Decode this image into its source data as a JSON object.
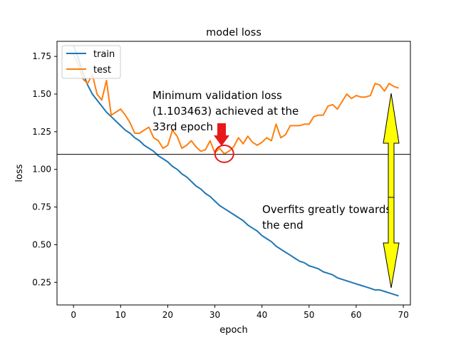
{
  "chart_data": {
    "type": "line",
    "title": "model loss",
    "xlabel": "epoch",
    "ylabel": "loss",
    "xlim": [
      -3.5,
      71.5
    ],
    "ylim": [
      0.1,
      1.85
    ],
    "xticks": [
      0,
      10,
      20,
      30,
      40,
      50,
      60,
      70
    ],
    "yticks": [
      0.25,
      0.5,
      0.75,
      1.0,
      1.25,
      1.5,
      1.75
    ],
    "legend_position": "top-left",
    "grid": false,
    "series": [
      {
        "name": "train",
        "color": "#1f77b4",
        "x": [
          0,
          1,
          2,
          3,
          4,
          5,
          6,
          7,
          8,
          9,
          10,
          11,
          12,
          13,
          14,
          15,
          16,
          17,
          18,
          19,
          20,
          21,
          22,
          23,
          24,
          25,
          26,
          27,
          28,
          29,
          30,
          31,
          32,
          33,
          34,
          35,
          36,
          37,
          38,
          39,
          40,
          41,
          42,
          43,
          44,
          45,
          46,
          47,
          48,
          49,
          50,
          51,
          52,
          53,
          54,
          55,
          56,
          57,
          58,
          59,
          60,
          61,
          62,
          63,
          64,
          65,
          66,
          67,
          68,
          69
        ],
        "y": [
          1.82,
          1.74,
          1.64,
          1.56,
          1.5,
          1.46,
          1.42,
          1.38,
          1.35,
          1.32,
          1.29,
          1.26,
          1.24,
          1.21,
          1.19,
          1.16,
          1.14,
          1.12,
          1.09,
          1.07,
          1.05,
          1.02,
          1.0,
          0.97,
          0.95,
          0.92,
          0.89,
          0.87,
          0.84,
          0.82,
          0.79,
          0.76,
          0.74,
          0.72,
          0.7,
          0.68,
          0.66,
          0.63,
          0.61,
          0.59,
          0.56,
          0.54,
          0.52,
          0.49,
          0.47,
          0.45,
          0.43,
          0.41,
          0.39,
          0.38,
          0.36,
          0.35,
          0.34,
          0.32,
          0.31,
          0.3,
          0.28,
          0.27,
          0.26,
          0.25,
          0.24,
          0.23,
          0.22,
          0.21,
          0.2,
          0.2,
          0.19,
          0.18,
          0.17,
          0.16
        ]
      },
      {
        "name": "test",
        "color": "#ff7f0e",
        "x": [
          0,
          1,
          2,
          3,
          4,
          5,
          6,
          7,
          8,
          9,
          10,
          11,
          12,
          13,
          14,
          15,
          16,
          17,
          18,
          19,
          20,
          21,
          22,
          23,
          24,
          25,
          26,
          27,
          28,
          29,
          30,
          31,
          32,
          33,
          34,
          35,
          36,
          37,
          38,
          39,
          40,
          41,
          42,
          43,
          44,
          45,
          46,
          47,
          48,
          49,
          50,
          51,
          52,
          53,
          54,
          55,
          56,
          57,
          58,
          59,
          60,
          61,
          62,
          63,
          64,
          65,
          66,
          67,
          68,
          69
        ],
        "y": [
          1.76,
          1.7,
          1.6,
          1.57,
          1.63,
          1.5,
          1.46,
          1.59,
          1.36,
          1.38,
          1.4,
          1.36,
          1.31,
          1.24,
          1.24,
          1.26,
          1.28,
          1.21,
          1.19,
          1.14,
          1.16,
          1.26,
          1.22,
          1.14,
          1.16,
          1.19,
          1.15,
          1.12,
          1.13,
          1.19,
          1.11,
          1.14,
          1.103463,
          1.12,
          1.15,
          1.21,
          1.17,
          1.22,
          1.18,
          1.16,
          1.18,
          1.21,
          1.19,
          1.3,
          1.21,
          1.23,
          1.29,
          1.29,
          1.29,
          1.3,
          1.3,
          1.35,
          1.36,
          1.36,
          1.42,
          1.43,
          1.4,
          1.45,
          1.5,
          1.47,
          1.49,
          1.48,
          1.48,
          1.49,
          1.57,
          1.56,
          1.52,
          1.57,
          1.55,
          1.54
        ]
      }
    ],
    "reference_line": {
      "y": 1.1
    },
    "annotations": {
      "min_loss_line1": "Minimum validation loss",
      "min_loss_line2": "(1.103463) achieved at the",
      "min_loss_line3": "33rd epoch",
      "overfit_line1": "Overfits greatly towards",
      "overfit_line2": "the end",
      "min_marker_x": 32,
      "min_marker_y": 1.103463
    },
    "annotation_colors": {
      "down_arrow": "#e8191a",
      "circle": "#e8191a",
      "double_arrow_fill": "#ffff00",
      "double_arrow_stroke": "#000000"
    }
  }
}
